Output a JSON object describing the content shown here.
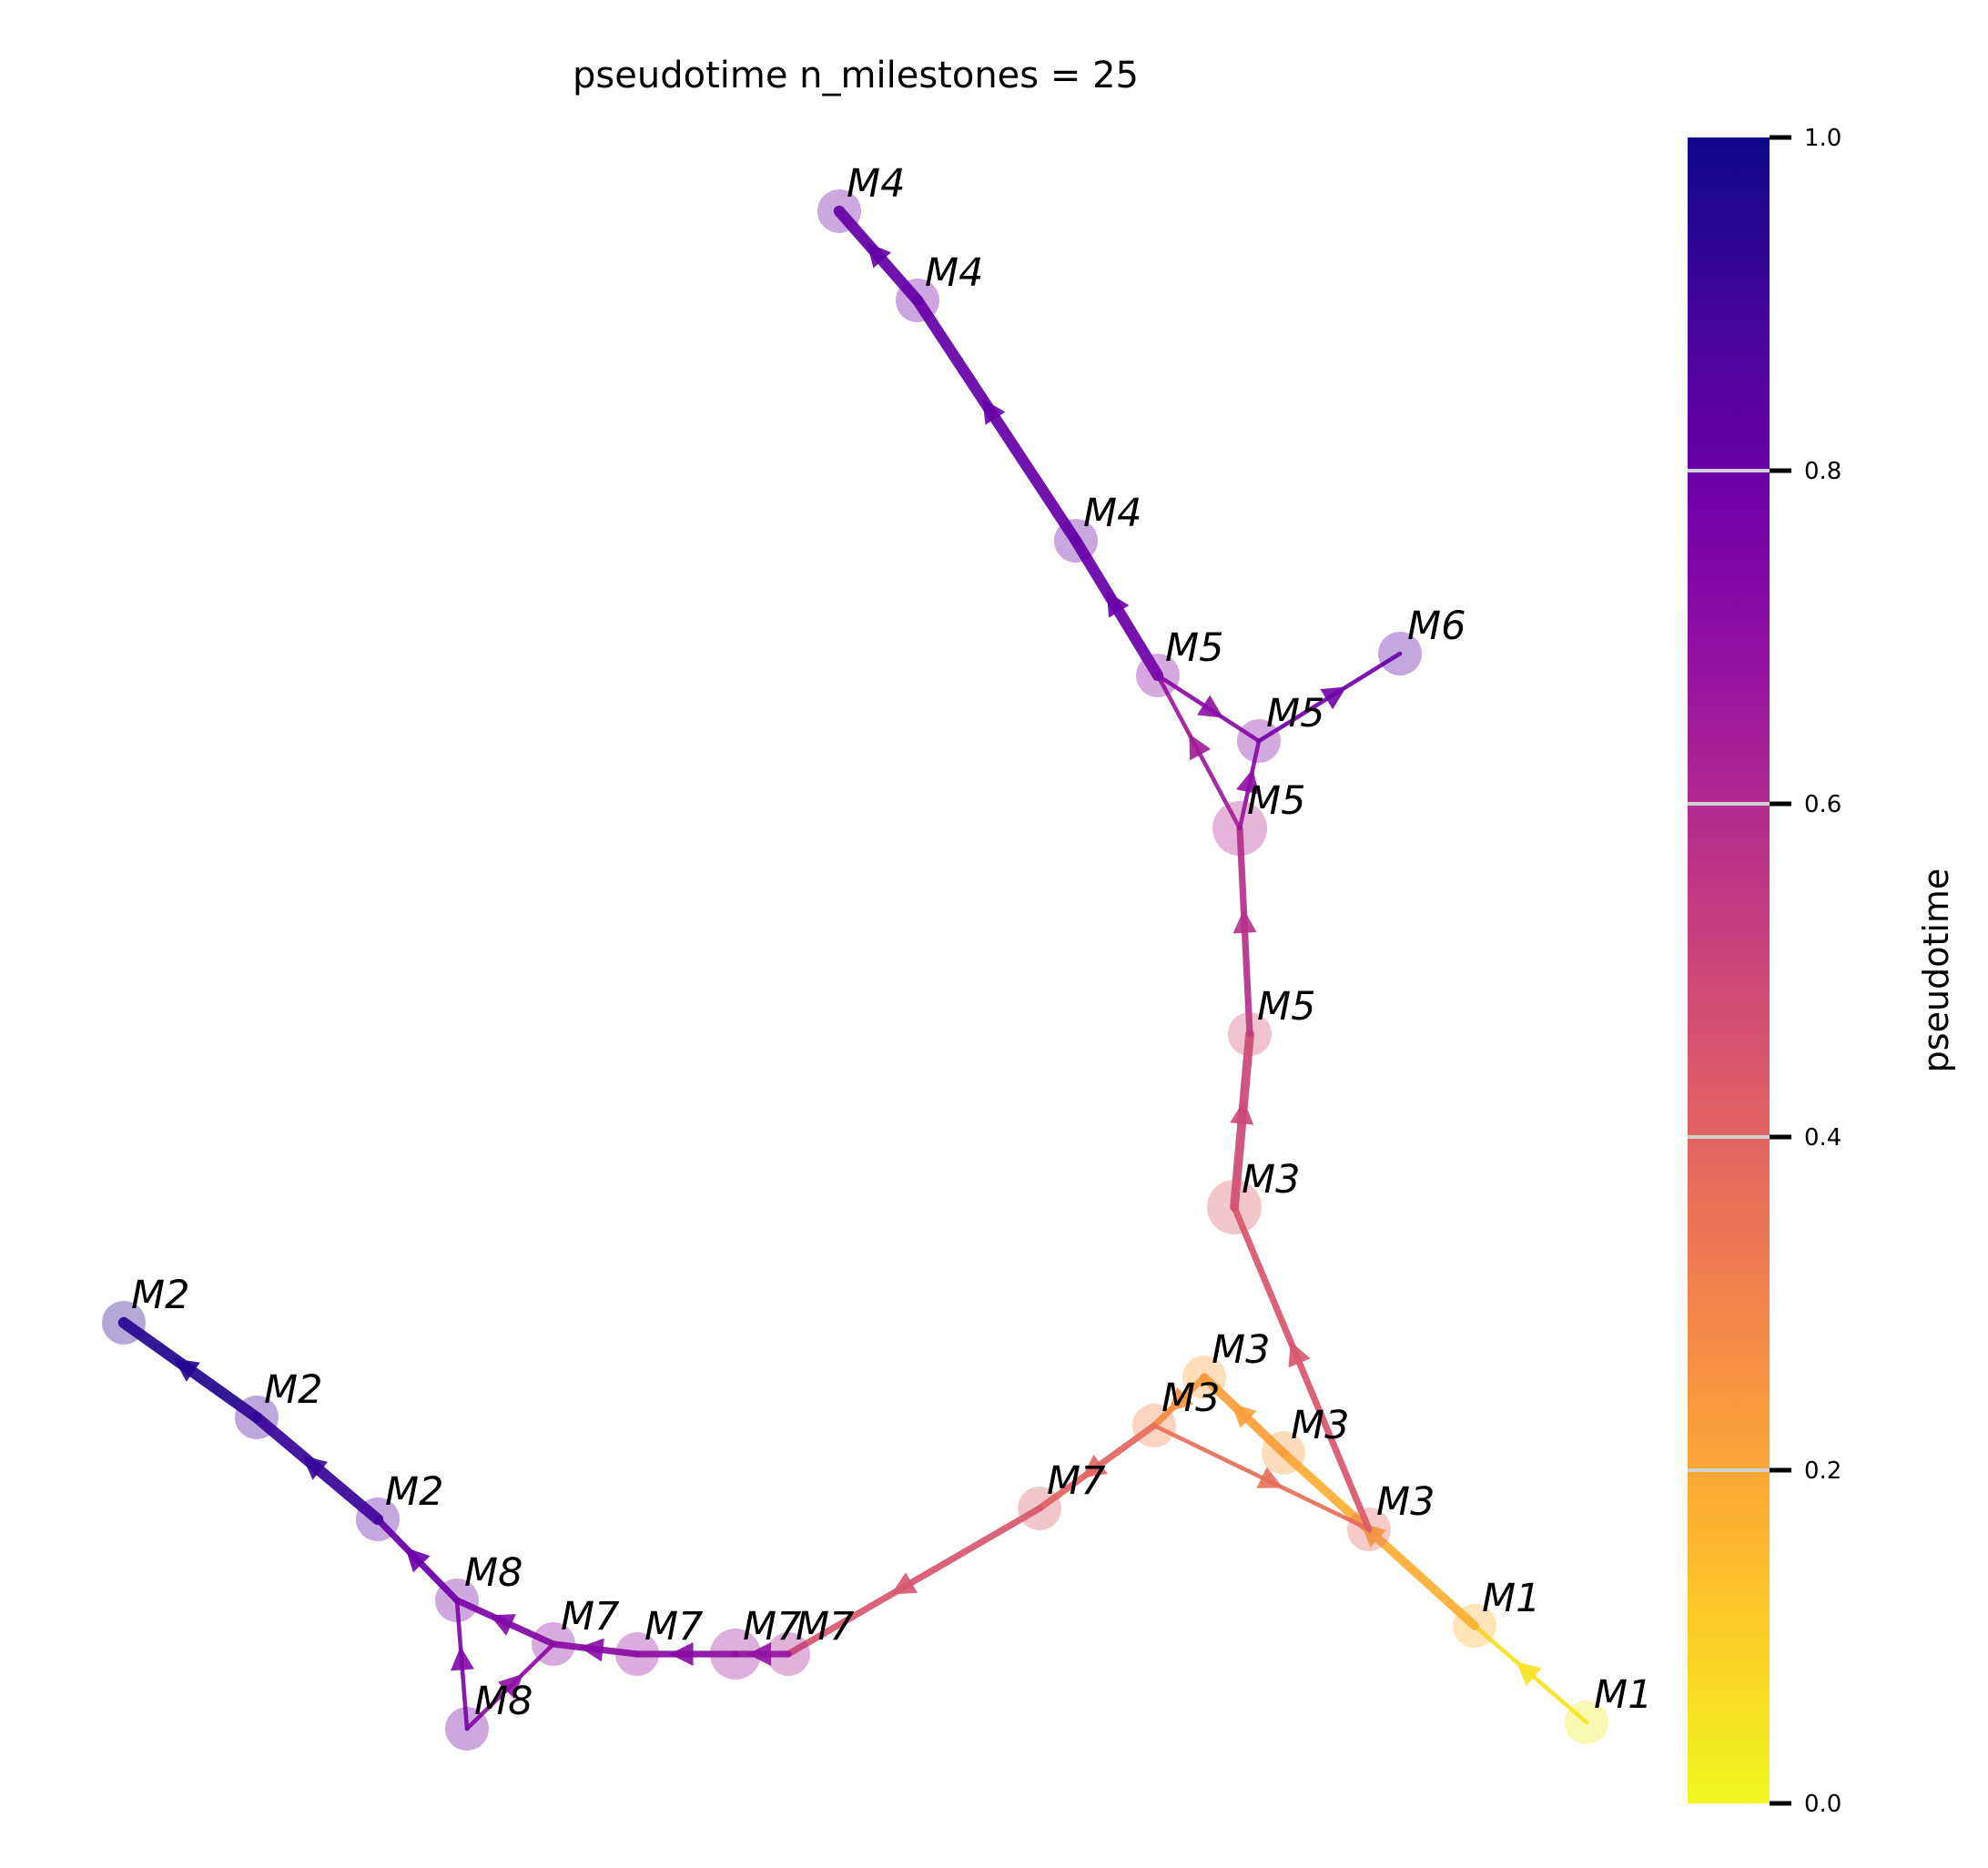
{
  "title": "pseudotime n_milestones = 25",
  "colorbar": {
    "label": "pseudotime",
    "range": [
      0.0,
      1.0
    ],
    "ticks": [
      "0.0",
      "0.2",
      "0.4",
      "0.6",
      "0.8",
      "1.0"
    ],
    "colormap": "plasma_r"
  },
  "nodes": [
    {
      "id": "n1",
      "label": "M1",
      "t": 0.03
    },
    {
      "id": "n2",
      "label": "M1",
      "t": 0.17
    },
    {
      "id": "n3",
      "label": "M3",
      "t": 0.21
    },
    {
      "id": "n4",
      "label": "M3",
      "t": 0.23
    },
    {
      "id": "n5",
      "label": "M3",
      "t": 0.31
    },
    {
      "id": "n6",
      "label": "M3",
      "t": 0.39
    },
    {
      "id": "n7",
      "label": "M3",
      "t": 0.42
    },
    {
      "id": "n8",
      "label": "M5",
      "t": 0.47
    },
    {
      "id": "n9",
      "label": "M5",
      "t": 0.6
    },
    {
      "id": "n10",
      "label": "M5",
      "t": 0.72
    },
    {
      "id": "n11",
      "label": "M5",
      "t": 0.74
    },
    {
      "id": "n12",
      "label": "M4",
      "t": 0.78
    },
    {
      "id": "n13",
      "label": "M4",
      "t": 0.8
    },
    {
      "id": "n14",
      "label": "M4",
      "t": 0.82
    },
    {
      "id": "n15",
      "label": "M6",
      "t": 0.85
    },
    {
      "id": "n16",
      "label": "M7",
      "t": 0.43
    },
    {
      "id": "n17",
      "label": "M7",
      "t": 0.63
    },
    {
      "id": "n18",
      "label": "M7",
      "t": 0.66
    },
    {
      "id": "n19",
      "label": "M7",
      "t": 0.68
    },
    {
      "id": "n20",
      "label": "M7",
      "t": 0.7
    },
    {
      "id": "n21",
      "label": "M8",
      "t": 0.76
    },
    {
      "id": "n22",
      "label": "M8",
      "t": 0.78
    },
    {
      "id": "n23",
      "label": "M2",
      "t": 0.85
    },
    {
      "id": "n24",
      "label": "M2",
      "t": 0.9
    },
    {
      "id": "n25",
      "label": "M2",
      "t": 0.95
    }
  ],
  "edges": [
    {
      "from": "n1",
      "to": "n2",
      "t": 0.05,
      "weight": 1
    },
    {
      "from": "n2",
      "to": "n4",
      "t": 0.18,
      "weight": 3
    },
    {
      "from": "n4",
      "to": "n3",
      "t": 0.22,
      "weight": 3
    },
    {
      "from": "n3",
      "to": "n5",
      "t": 0.26,
      "weight": 2
    },
    {
      "from": "n5",
      "to": "n6",
      "t": 0.37,
      "weight": 1
    },
    {
      "from": "n6",
      "to": "n7",
      "t": 0.45,
      "weight": 2
    },
    {
      "from": "n7",
      "to": "n8",
      "t": 0.5,
      "weight": 3
    },
    {
      "from": "n8",
      "to": "n9",
      "t": 0.58,
      "weight": 2
    },
    {
      "from": "n9",
      "to": "n10",
      "t": 0.65,
      "weight": 1
    },
    {
      "from": "n9",
      "to": "n11",
      "t": 0.7,
      "weight": 1
    },
    {
      "from": "n10",
      "to": "n11",
      "t": 0.71,
      "weight": 1
    },
    {
      "from": "n11",
      "to": "n15",
      "t": 0.78,
      "weight": 1
    },
    {
      "from": "n10",
      "to": "n14",
      "t": 0.8,
      "weight": 4
    },
    {
      "from": "n14",
      "to": "n13",
      "t": 0.81,
      "weight": 4
    },
    {
      "from": "n13",
      "to": "n12",
      "t": 0.82,
      "weight": 4
    },
    {
      "from": "n5",
      "to": "n16",
      "t": 0.4,
      "weight": 2
    },
    {
      "from": "n16",
      "to": "n17",
      "t": 0.45,
      "weight": 2
    },
    {
      "from": "n17",
      "to": "n18",
      "t": 0.7,
      "weight": 2
    },
    {
      "from": "n18",
      "to": "n19",
      "t": 0.72,
      "weight": 2
    },
    {
      "from": "n19",
      "to": "n20",
      "t": 0.72,
      "weight": 2
    },
    {
      "from": "n20",
      "to": "n21",
      "t": 0.74,
      "weight": 2
    },
    {
      "from": "n22",
      "to": "n20",
      "t": 0.7,
      "weight": 1
    },
    {
      "from": "n22",
      "to": "n21",
      "t": 0.74,
      "weight": 1
    },
    {
      "from": "n21",
      "to": "n23",
      "t": 0.8,
      "weight": 2
    },
    {
      "from": "n23",
      "to": "n24",
      "t": 0.92,
      "weight": 4
    },
    {
      "from": "n24",
      "to": "n25",
      "t": 0.96,
      "weight": 4
    }
  ]
}
